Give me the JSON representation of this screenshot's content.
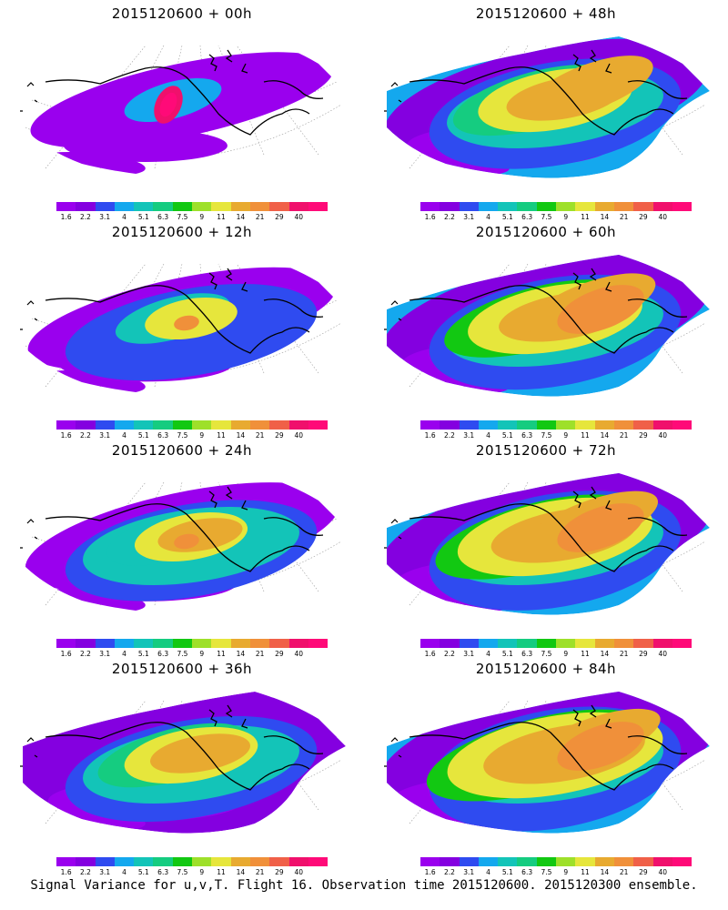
{
  "panels": [
    {
      "title": "2015120600 + 00h",
      "lead": 0
    },
    {
      "title": "2015120600 + 48h",
      "lead": 48
    },
    {
      "title": "2015120600 + 12h",
      "lead": 12
    },
    {
      "title": "2015120600 + 60h",
      "lead": 60
    },
    {
      "title": "2015120600 + 24h",
      "lead": 24
    },
    {
      "title": "2015120600 + 72h",
      "lead": 72
    },
    {
      "title": "2015120600 + 36h",
      "lead": 36
    },
    {
      "title": "2015120600 + 84h",
      "lead": 84
    }
  ],
  "colorbar": {
    "labels": [
      "1.6",
      "2.2",
      "3.1",
      "4",
      "5.1",
      "6.3",
      "7.5",
      "9",
      "11",
      "14",
      "21",
      "29",
      "40"
    ],
    "colors": [
      "#9a00ee",
      "#8400e0",
      "#2f4bf0",
      "#14a8ee",
      "#13c4b8",
      "#15cc80",
      "#12c812",
      "#9ee02a",
      "#e6e63c",
      "#e8aa30",
      "#f0903a",
      "#f06048",
      "#f0106c",
      "#ff0a78"
    ]
  },
  "footer": "Signal Variance for u,v,T. Flight 16. Observation time 2015120600. 2015120300 ensemble."
}
